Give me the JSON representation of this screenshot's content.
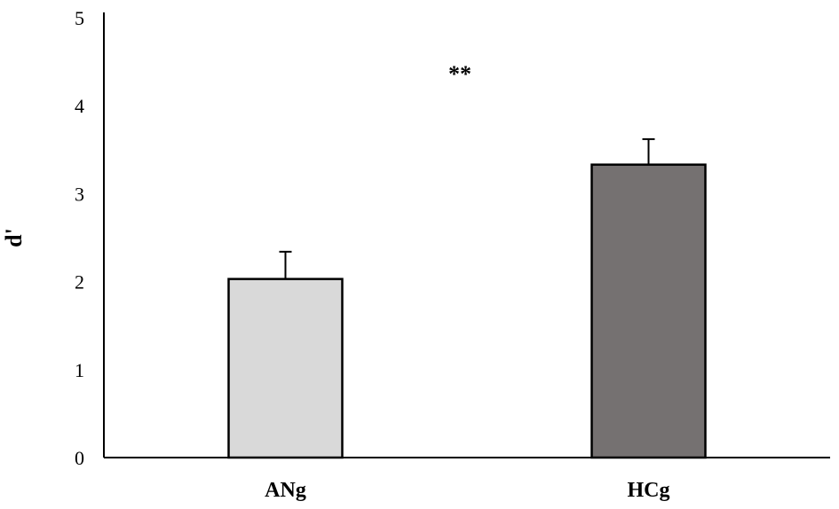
{
  "chart_data": {
    "type": "bar",
    "categories": [
      "ANg",
      "HCg"
    ],
    "values": [
      2.03,
      3.33
    ],
    "errors": [
      0.31,
      0.29
    ],
    "bar_colors": [
      "#d9d9d9",
      "#757171"
    ],
    "edge_color": "#000000",
    "ylabel": "d'",
    "xlabel": "",
    "title": "",
    "ylim": [
      0,
      5
    ],
    "yticks": [
      0,
      1,
      2,
      3,
      4,
      5
    ],
    "annotation": "**",
    "grid": false,
    "legend": "none"
  }
}
